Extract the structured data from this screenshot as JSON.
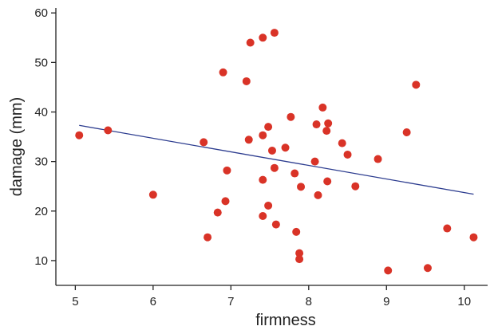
{
  "chart_data": {
    "type": "scatter",
    "xlabel": "firmness",
    "ylabel": "damage (mm)",
    "xlim": [
      4.75,
      10.3
    ],
    "ylim": [
      5,
      61
    ],
    "xticks": [
      5,
      6,
      7,
      8,
      9,
      10
    ],
    "yticks": [
      10,
      20,
      30,
      40,
      50,
      60
    ],
    "grid": false,
    "point_color": "#d93327",
    "line_color": "#2c3c8f",
    "points": [
      [
        5.05,
        35.3
      ],
      [
        5.42,
        36.3
      ],
      [
        6.0,
        23.3
      ],
      [
        6.65,
        33.9
      ],
      [
        6.7,
        14.7
      ],
      [
        6.83,
        19.7
      ],
      [
        6.9,
        48.0
      ],
      [
        6.93,
        22.0
      ],
      [
        6.95,
        28.2
      ],
      [
        7.2,
        46.2
      ],
      [
        7.23,
        34.4
      ],
      [
        7.25,
        54.0
      ],
      [
        7.41,
        55.0
      ],
      [
        7.41,
        35.3
      ],
      [
        7.41,
        26.3
      ],
      [
        7.41,
        19.0
      ],
      [
        7.48,
        37.0
      ],
      [
        7.48,
        21.1
      ],
      [
        7.53,
        32.2
      ],
      [
        7.56,
        56.0
      ],
      [
        7.56,
        28.7
      ],
      [
        7.58,
        17.3
      ],
      [
        7.7,
        32.8
      ],
      [
        7.77,
        39.0
      ],
      [
        7.82,
        27.6
      ],
      [
        7.84,
        15.8
      ],
      [
        7.88,
        11.5
      ],
      [
        7.88,
        10.3
      ],
      [
        7.9,
        24.9
      ],
      [
        8.08,
        30.0
      ],
      [
        8.1,
        37.5
      ],
      [
        8.12,
        23.2
      ],
      [
        8.18,
        40.9
      ],
      [
        8.23,
        36.2
      ],
      [
        8.25,
        37.7
      ],
      [
        8.24,
        26.0
      ],
      [
        8.43,
        33.7
      ],
      [
        8.5,
        31.4
      ],
      [
        8.6,
        25.0
      ],
      [
        8.89,
        30.5
      ],
      [
        9.02,
        8.0
      ],
      [
        9.26,
        35.9
      ],
      [
        9.38,
        45.5
      ],
      [
        9.53,
        8.5
      ],
      [
        9.78,
        16.5
      ],
      [
        10.12,
        14.7
      ]
    ],
    "regression": {
      "x": [
        5.05,
        10.12
      ],
      "y": [
        37.3,
        23.4
      ]
    }
  }
}
